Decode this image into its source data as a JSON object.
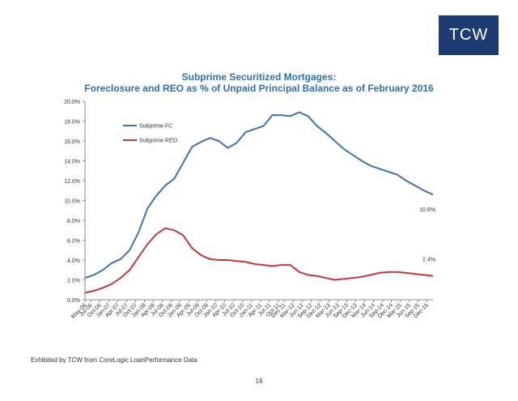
{
  "logo": {
    "text": "TCW",
    "color": "#1f3b73"
  },
  "footer": {
    "source": "Exhibited by TCW from CoreLogic LoanPerformance Data",
    "page_number": "16"
  },
  "chart_data": {
    "type": "line",
    "title": "Subprime Securitized Mortgages:",
    "subtitle": "Foreclosure and REO as % of Unpaid Principal Balance as of February 2016",
    "xlabel": "",
    "ylabel": "",
    "ylim": [
      0,
      20
    ],
    "yticks": [
      "0.0%",
      "2.0%",
      "4.0%",
      "6.0%",
      "8.0%",
      "10.0%",
      "12.0%",
      "14.0%",
      "16.0%",
      "18.0%",
      "20.0%"
    ],
    "grid": false,
    "legend_position": "top-left",
    "x_start": "May-06",
    "x_end": "Feb-16",
    "x_tick_labels": [
      "May-06",
      "Jul-06",
      "Oct-06",
      "Jan-07",
      "Apr-07",
      "Jul-07",
      "Oct-07",
      "Jan-08",
      "Apr-08",
      "Jul-08",
      "Oct-08",
      "Jan-09",
      "Apr-09",
      "Jul-09",
      "Oct-09",
      "Jan-10",
      "Apr-10",
      "Jul-10",
      "Oct-10",
      "Jan-11",
      "Apr-11",
      "Jul-11",
      "Oct-11",
      "Dec-11",
      "Mar-12",
      "Jun-12",
      "Sep-12",
      "Dec-12",
      "Mar-13",
      "Jun-13",
      "Sep-13",
      "Dec-13",
      "Mar-14",
      "Jun-14",
      "Sep-14",
      "Dec-14",
      "Mar-15",
      "Jun-15",
      "Sep-15",
      "Dec-15"
    ],
    "series": [
      {
        "name": "Subprime FC",
        "color": "#3d72b4",
        "end_label": "10.6%",
        "points": [
          [
            "May-06",
            2.2
          ],
          [
            "Aug-06",
            2.5
          ],
          [
            "Nov-06",
            3.0
          ],
          [
            "Feb-07",
            3.7
          ],
          [
            "May-07",
            4.1
          ],
          [
            "Aug-07",
            5.0
          ],
          [
            "Nov-07",
            6.8
          ],
          [
            "Feb-08",
            9.2
          ],
          [
            "May-08",
            10.5
          ],
          [
            "Aug-08",
            11.5
          ],
          [
            "Nov-08",
            12.2
          ],
          [
            "Feb-09",
            13.8
          ],
          [
            "May-09",
            15.4
          ],
          [
            "Aug-09",
            15.9
          ],
          [
            "Nov-09",
            16.3
          ],
          [
            "Feb-10",
            16.0
          ],
          [
            "May-10",
            15.3
          ],
          [
            "Aug-10",
            15.8
          ],
          [
            "Nov-10",
            16.9
          ],
          [
            "Feb-11",
            17.2
          ],
          [
            "May-11",
            17.5
          ],
          [
            "Aug-11",
            18.6
          ],
          [
            "Nov-11",
            18.6
          ],
          [
            "Feb-12",
            18.5
          ],
          [
            "May-12",
            18.9
          ],
          [
            "Aug-12",
            18.5
          ],
          [
            "Nov-12",
            17.5
          ],
          [
            "Feb-13",
            16.8
          ],
          [
            "May-13",
            16.0
          ],
          [
            "Aug-13",
            15.2
          ],
          [
            "Nov-13",
            14.6
          ],
          [
            "Feb-14",
            14.0
          ],
          [
            "May-14",
            13.5
          ],
          [
            "Aug-14",
            13.2
          ],
          [
            "Nov-14",
            12.9
          ],
          [
            "Feb-15",
            12.6
          ],
          [
            "May-15",
            12.0
          ],
          [
            "Aug-15",
            11.5
          ],
          [
            "Nov-15",
            11.0
          ],
          [
            "Feb-16",
            10.6
          ]
        ]
      },
      {
        "name": "Subprime REO",
        "color": "#c0393b",
        "end_label": "2.4%",
        "points": [
          [
            "May-06",
            0.7
          ],
          [
            "Aug-06",
            0.9
          ],
          [
            "Nov-06",
            1.2
          ],
          [
            "Feb-07",
            1.6
          ],
          [
            "May-07",
            2.2
          ],
          [
            "Aug-07",
            3.0
          ],
          [
            "Nov-07",
            4.3
          ],
          [
            "Feb-08",
            5.6
          ],
          [
            "May-08",
            6.6
          ],
          [
            "Aug-08",
            7.2
          ],
          [
            "Nov-08",
            7.0
          ],
          [
            "Feb-09",
            6.5
          ],
          [
            "May-09",
            5.2
          ],
          [
            "Aug-09",
            4.5
          ],
          [
            "Nov-09",
            4.1
          ],
          [
            "Feb-10",
            4.0
          ],
          [
            "May-10",
            4.0
          ],
          [
            "Aug-10",
            3.9
          ],
          [
            "Nov-10",
            3.8
          ],
          [
            "Feb-11",
            3.6
          ],
          [
            "May-11",
            3.5
          ],
          [
            "Aug-11",
            3.4
          ],
          [
            "Nov-11",
            3.5
          ],
          [
            "Feb-12",
            3.5
          ],
          [
            "May-12",
            2.8
          ],
          [
            "Aug-12",
            2.5
          ],
          [
            "Nov-12",
            2.4
          ],
          [
            "Feb-13",
            2.2
          ],
          [
            "May-13",
            2.0
          ],
          [
            "Aug-13",
            2.1
          ],
          [
            "Nov-13",
            2.2
          ],
          [
            "Feb-14",
            2.3
          ],
          [
            "May-14",
            2.5
          ],
          [
            "Aug-14",
            2.7
          ],
          [
            "Nov-14",
            2.8
          ],
          [
            "Feb-15",
            2.8
          ],
          [
            "May-15",
            2.7
          ],
          [
            "Aug-15",
            2.6
          ],
          [
            "Nov-15",
            2.5
          ],
          [
            "Feb-16",
            2.4
          ]
        ]
      }
    ]
  }
}
